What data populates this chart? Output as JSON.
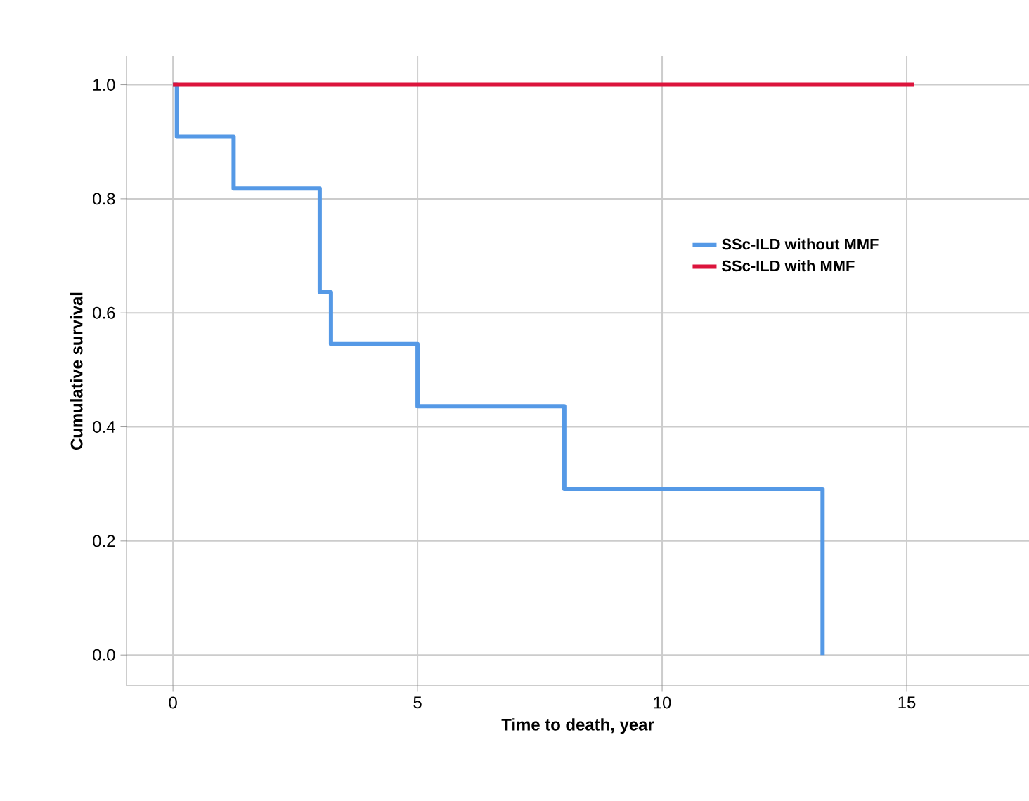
{
  "chart_data": {
    "type": "step",
    "xlabel": "Time to death, year",
    "ylabel": "Cumulative survival",
    "xlim": [
      -0.95,
      17.5
    ],
    "ylim": [
      -0.054,
      1.05
    ],
    "xticks": [
      0,
      5,
      10,
      15
    ],
    "yticks": [
      {
        "value": 0,
        "label": "0.0"
      },
      {
        "value": 0.2,
        "label": "0.2"
      },
      {
        "value": 0.4,
        "label": "0.4"
      },
      {
        "value": 0.6,
        "label": "0.6"
      },
      {
        "value": 0.8,
        "label": "0.8"
      },
      {
        "value": 1,
        "label": "1.0"
      }
    ],
    "grid": true,
    "legend": "right",
    "series": [
      {
        "name": "SSc-ILD without MMF",
        "color": "#5599e6",
        "x": [
          0,
          0.08,
          1.24,
          3.0,
          3.23,
          5.0,
          8.0,
          13.28
        ],
        "values": [
          1.0,
          0.909,
          0.818,
          0.636,
          0.545,
          0.436,
          0.291,
          0.0
        ]
      },
      {
        "name": "SSc-ILD with MMF",
        "color": "#dc143c",
        "x": [
          0,
          15.15
        ],
        "values": [
          1.0,
          1.0
        ]
      }
    ]
  }
}
